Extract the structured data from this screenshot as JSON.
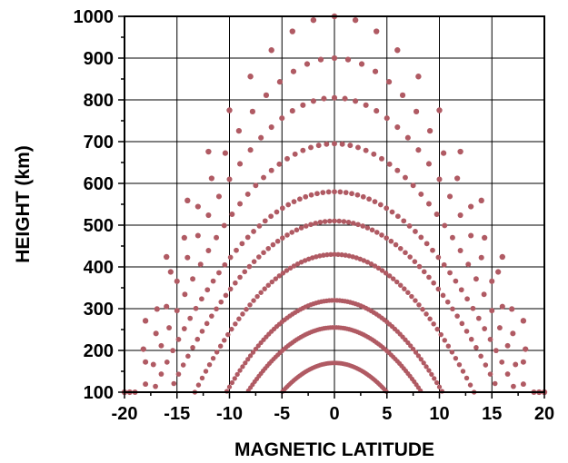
{
  "chart_data": {
    "type": "scatter",
    "title": "",
    "xlabel": "MAGNETIC LATITUDE",
    "ylabel": "HEIGHT (km)",
    "xlim": [
      -20,
      20
    ],
    "ylim": [
      100,
      1000
    ],
    "xticks": [
      "-20",
      "-15",
      "-10",
      "-5",
      "0",
      "5",
      "10",
      "15",
      "20"
    ],
    "yticks": [
      "100",
      "200",
      "300",
      "400",
      "500",
      "600",
      "700",
      "800",
      "900",
      "1000"
    ],
    "grid": true,
    "legend": "none",
    "marker_color": "#b05a63",
    "series": [
      {
        "apex_km": 1000,
        "lat_at_100km": 20.0,
        "latitude_step_deg": 2.0
      },
      {
        "apex_km": 900,
        "lat_at_100km": 19.5,
        "latitude_step_deg": 1.3
      },
      {
        "apex_km": 805,
        "lat_at_100km": 19.0,
        "latitude_step_deg": 1.0
      },
      {
        "apex_km": 695,
        "lat_at_100km": 18.3,
        "latitude_step_deg": 0.75
      },
      {
        "apex_km": 580,
        "lat_at_100km": 17.3,
        "latitude_step_deg": 0.55
      },
      {
        "apex_km": 510,
        "lat_at_100km": 15.7,
        "latitude_step_deg": 0.45
      },
      {
        "apex_km": 430,
        "lat_at_100km": 13.3,
        "latitude_step_deg": 0.35
      },
      {
        "apex_km": 320,
        "lat_at_100km": 10.3,
        "latitude_step_deg": 0.25
      },
      {
        "apex_km": 255,
        "lat_at_100km": 8.3,
        "latitude_step_deg": 0.2
      },
      {
        "apex_km": 170,
        "lat_at_100km": 5.0,
        "latitude_step_deg": 0.15
      }
    ]
  }
}
